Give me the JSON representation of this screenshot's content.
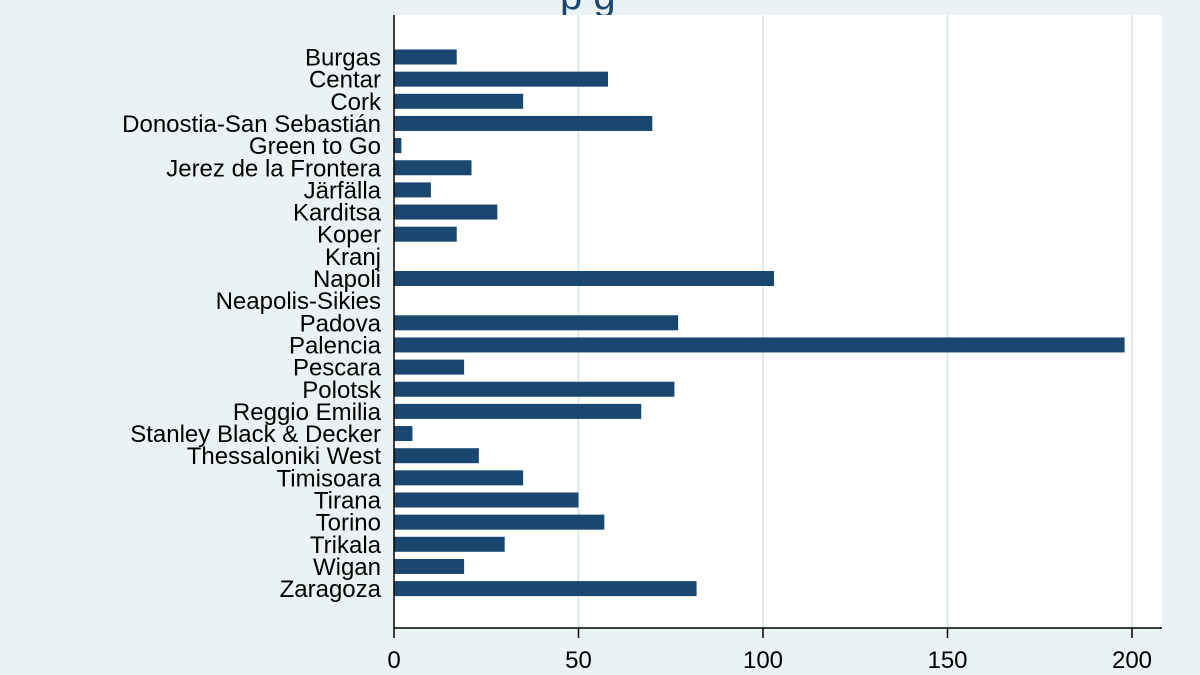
{
  "chart_data": {
    "type": "bar",
    "orientation": "horizontal",
    "title_fragment": "p g",
    "categories": [
      "Burgas",
      "Centar",
      "Cork",
      "Donostia-San Sebastián",
      "Green to Go",
      "Jerez de la Frontera",
      "Järfälla",
      "Karditsa",
      "Koper",
      "Kranj",
      "Napoli",
      "Neapolis-Sikies",
      "Padova",
      "Palencia",
      "Pescara",
      "Polotsk",
      "Reggio Emilia",
      "Stanley Black & Decker",
      "Thessaloniki West",
      "Timisoara",
      "Tirana",
      "Torino",
      "Trikala",
      "Wigan",
      "Zaragoza"
    ],
    "values": [
      17,
      58,
      35,
      70,
      2,
      21,
      10,
      28,
      17,
      0,
      103,
      0,
      77,
      198,
      19,
      76,
      67,
      5,
      23,
      35,
      50,
      57,
      30,
      19,
      82
    ],
    "xlim": [
      0,
      200
    ],
    "xticks": [
      0,
      50,
      100,
      150,
      200
    ],
    "grid": true,
    "bar_color": "#1a476f",
    "grid_color": "#d6e3e7",
    "plot_background": "#ffffff",
    "page_background": "#eaf2f3"
  }
}
